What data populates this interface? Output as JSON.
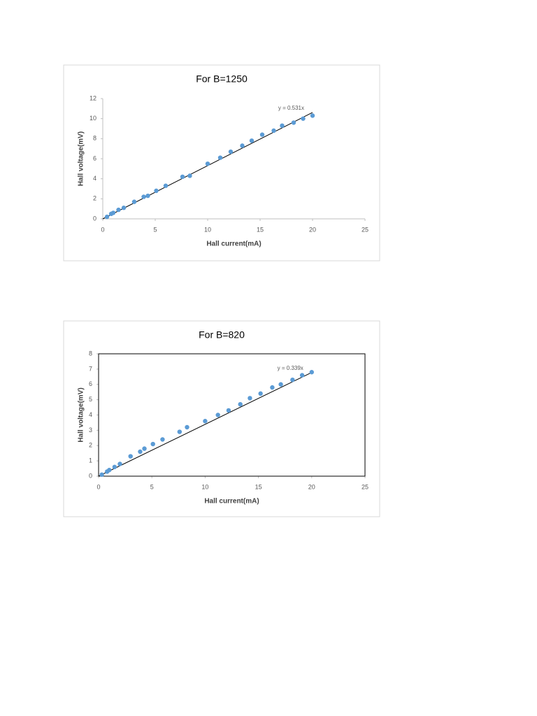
{
  "chart_data": [
    {
      "type": "scatter",
      "title": "For B=1250",
      "xlabel": "Hall current(mA)",
      "ylabel": "Hall voltage(mV)",
      "color": "#5b9bd5",
      "plot_border": false,
      "x": [
        0.4,
        0.8,
        1.0,
        1.5,
        2.0,
        3.0,
        3.9,
        4.3,
        5.1,
        6.0,
        7.6,
        8.3,
        10.0,
        11.2,
        12.2,
        13.3,
        14.2,
        15.2,
        16.3,
        17.1,
        18.2,
        19.1,
        20.0
      ],
      "values": [
        0.2,
        0.5,
        0.6,
        0.9,
        1.1,
        1.7,
        2.2,
        2.3,
        2.8,
        3.3,
        4.2,
        4.3,
        5.5,
        6.1,
        6.7,
        7.3,
        7.8,
        8.4,
        8.8,
        9.3,
        9.6,
        10.0,
        10.3
      ],
      "trendline": {
        "slope": 0.531,
        "label": "y = 0.531x"
      },
      "xlim": [
        0,
        25
      ],
      "xticks": [
        0,
        5,
        10,
        15,
        20,
        25
      ],
      "ylim": [
        0,
        12
      ],
      "yticks": [
        0,
        2,
        4,
        6,
        8,
        10,
        12
      ]
    },
    {
      "type": "scatter",
      "title": "For B=820",
      "xlabel": "Hall current(mA)",
      "ylabel": "Hall voltage(mV)",
      "color": "#5b9bd5",
      "plot_border": true,
      "x": [
        0.3,
        0.8,
        1.0,
        1.5,
        2.0,
        3.0,
        3.9,
        4.3,
        5.1,
        6.0,
        7.6,
        8.3,
        10.0,
        11.2,
        12.2,
        13.3,
        14.2,
        15.2,
        16.3,
        17.1,
        18.2,
        19.1,
        20.0
      ],
      "values": [
        0.1,
        0.3,
        0.4,
        0.6,
        0.8,
        1.3,
        1.6,
        1.8,
        2.1,
        2.4,
        2.9,
        3.2,
        3.6,
        4.0,
        4.3,
        4.7,
        5.1,
        5.4,
        5.8,
        6.0,
        6.3,
        6.6,
        6.8
      ],
      "trendline": {
        "slope": 0.339,
        "label": "y = 0.339x"
      },
      "xlim": [
        0,
        25
      ],
      "xticks": [
        0,
        5,
        10,
        15,
        20,
        25
      ],
      "ylim": [
        0,
        8
      ],
      "yticks": [
        0,
        1,
        2,
        3,
        4,
        5,
        6,
        7,
        8
      ]
    }
  ]
}
